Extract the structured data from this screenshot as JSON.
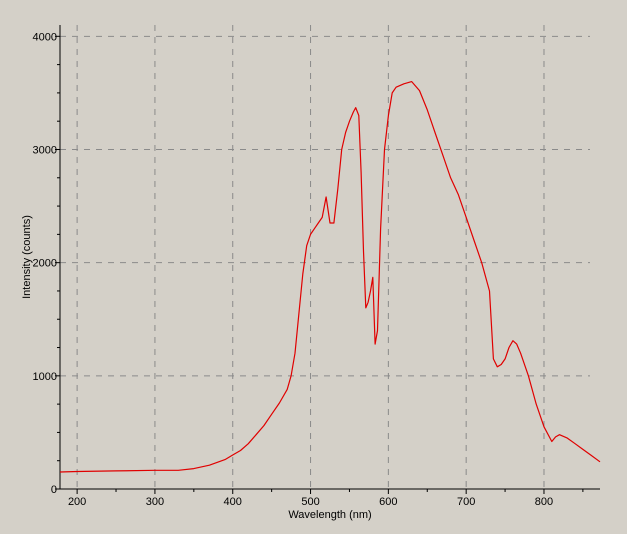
{
  "chart_data": {
    "type": "line",
    "title": "",
    "xlabel": "Wavelength (nm)",
    "ylabel": "Intensity (counts)",
    "xlim": [
      178,
      872
    ],
    "ylim": [
      0,
      4100
    ],
    "grid": true,
    "x_ticks": [
      200,
      300,
      400,
      500,
      600,
      700,
      800
    ],
    "y_ticks": [
      0,
      1000,
      2000,
      3000,
      4000
    ],
    "line_color": "#e00000",
    "series": [
      {
        "x": [
          178,
          200,
          250,
          300,
          330,
          350,
          370,
          390,
          400,
          410,
          420,
          430,
          440,
          450,
          460,
          470,
          475,
          480,
          485,
          490,
          495,
          500,
          505,
          510,
          515,
          520,
          525,
          530,
          535,
          540,
          545,
          550,
          555,
          558,
          562,
          565,
          568,
          571,
          574,
          577,
          580,
          583,
          586,
          590,
          595,
          600,
          605,
          610,
          620,
          630,
          635,
          640,
          650,
          660,
          670,
          680,
          690,
          700,
          710,
          720,
          730,
          735,
          740,
          745,
          750,
          755,
          760,
          765,
          770,
          780,
          790,
          800,
          810,
          815,
          820,
          830,
          840,
          850,
          860,
          872
        ],
        "y": [
          150,
          155,
          160,
          165,
          165,
          180,
          210,
          260,
          300,
          340,
          400,
          480,
          560,
          660,
          760,
          880,
          1000,
          1200,
          1550,
          1900,
          2150,
          2250,
          2300,
          2350,
          2400,
          2580,
          2350,
          2350,
          2650,
          3000,
          3150,
          3250,
          3330,
          3370,
          3300,
          2800,
          2100,
          1600,
          1650,
          1750,
          1870,
          1280,
          1400,
          2300,
          3000,
          3300,
          3500,
          3550,
          3580,
          3600,
          3560,
          3520,
          3350,
          3150,
          2950,
          2750,
          2600,
          2400,
          2200,
          2000,
          1750,
          1150,
          1080,
          1100,
          1150,
          1250,
          1310,
          1280,
          1200,
          1000,
          750,
          550,
          420,
          460,
          480,
          450,
          400,
          350,
          300,
          240
        ]
      }
    ]
  }
}
